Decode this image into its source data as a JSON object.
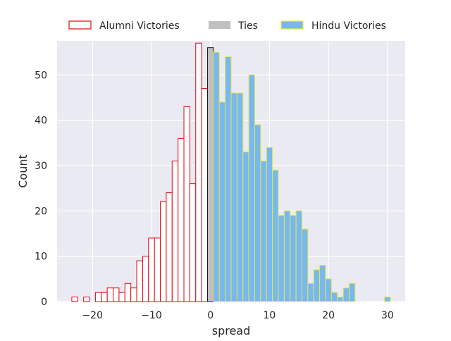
{
  "chart_data": {
    "type": "bar",
    "title": "",
    "xlabel": "spread",
    "ylabel": "Count",
    "xlim": [
      -26,
      33
    ],
    "ylim": [
      0,
      57.5
    ],
    "xticks": [
      -20,
      -10,
      0,
      10,
      20,
      30
    ],
    "xtick_labels": [
      "−20",
      "−10",
      "0",
      "10",
      "20",
      "30"
    ],
    "yticks": [
      0,
      10,
      20,
      30,
      40,
      50
    ],
    "ytick_labels": [
      "0",
      "10",
      "20",
      "30",
      "40",
      "50"
    ],
    "grid": true,
    "legend_position": "top-center",
    "bin_width": 1,
    "series": [
      {
        "name": "Alumni Victories",
        "face": "#ffffff",
        "edge": "#e8000b",
        "x": [
          -23,
          -22,
          -21,
          -20,
          -19,
          -18,
          -17,
          -16,
          -15,
          -14,
          -13,
          -12,
          -11,
          -10,
          -9,
          -8,
          -7,
          -6,
          -5,
          -4,
          -3,
          -2,
          -1
        ],
        "values": [
          1,
          0,
          1,
          0,
          2,
          2,
          3,
          3,
          2,
          4,
          3,
          9,
          10,
          14,
          14,
          22,
          24,
          31,
          36,
          43,
          26,
          57,
          47
        ]
      },
      {
        "name": "Ties",
        "face": "#c0c0c0",
        "edge": "#1a1a1a",
        "x": [
          0
        ],
        "values": [
          56
        ]
      },
      {
        "name": "Hindu Victories",
        "face": "#78b8f0",
        "edge": "#e8e83a",
        "x": [
          1,
          2,
          3,
          4,
          5,
          6,
          7,
          8,
          9,
          10,
          11,
          12,
          13,
          14,
          15,
          16,
          17,
          18,
          19,
          20,
          21,
          22,
          23,
          24,
          25,
          26,
          27,
          28,
          29,
          30
        ],
        "values": [
          55,
          44,
          54,
          46,
          46,
          33,
          50,
          39,
          31,
          34,
          29,
          19,
          20,
          19,
          20,
          16,
          4,
          7,
          8,
          5,
          2,
          1,
          3,
          4,
          0,
          0,
          0,
          0,
          0,
          1
        ]
      }
    ]
  }
}
